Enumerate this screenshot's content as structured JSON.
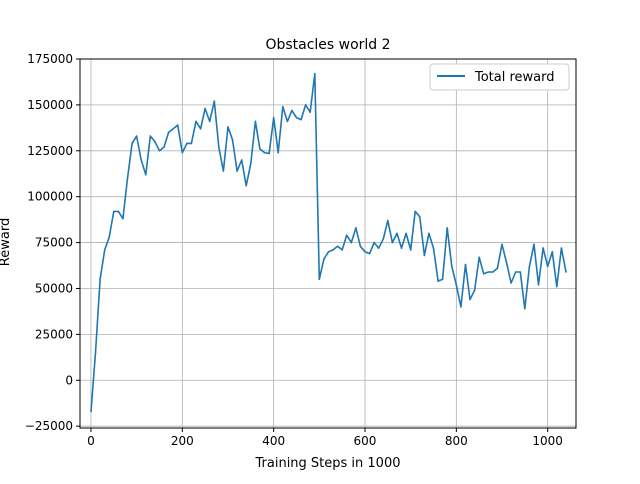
{
  "chart_data": {
    "type": "line",
    "title": "Obstacles world 2",
    "xlabel": "Training Steps in 1000",
    "ylabel": "Reward",
    "xlim": [
      -24,
      1062
    ],
    "ylim": [
      -26000,
      175000
    ],
    "xticks": [
      0,
      200,
      400,
      600,
      800,
      1000
    ],
    "yticks": [
      -25000,
      0,
      25000,
      50000,
      75000,
      100000,
      125000,
      150000,
      175000
    ],
    "grid": true,
    "legend_position": "top-right",
    "series": [
      {
        "name": "Total reward",
        "color": "#1f77b4",
        "x": [
          0,
          10,
          20,
          30,
          40,
          50,
          60,
          70,
          80,
          90,
          100,
          110,
          120,
          130,
          140,
          150,
          160,
          170,
          180,
          190,
          200,
          210,
          220,
          230,
          240,
          250,
          260,
          270,
          280,
          290,
          300,
          310,
          320,
          330,
          340,
          350,
          360,
          370,
          380,
          390,
          400,
          410,
          420,
          430,
          440,
          450,
          460,
          470,
          480,
          490,
          500,
          510,
          520,
          530,
          540,
          550,
          560,
          570,
          580,
          590,
          600,
          610,
          620,
          630,
          640,
          650,
          660,
          670,
          680,
          690,
          700,
          710,
          720,
          730,
          740,
          750,
          760,
          770,
          780,
          790,
          800,
          810,
          820,
          830,
          840,
          850,
          860,
          870,
          880,
          890,
          900,
          910,
          920,
          930,
          940,
          950,
          960,
          970,
          980,
          990,
          1000,
          1010,
          1020,
          1030,
          1040
        ],
        "y": [
          -17000,
          15000,
          55000,
          71000,
          78000,
          92000,
          92000,
          88000,
          110000,
          129000,
          133000,
          120000,
          112000,
          133000,
          130000,
          125000,
          127000,
          135000,
          137000,
          139000,
          124000,
          129000,
          129000,
          141000,
          137000,
          148000,
          141000,
          152000,
          127000,
          114000,
          138000,
          131000,
          114000,
          120000,
          106000,
          118000,
          141000,
          126000,
          124000,
          123500,
          143000,
          124000,
          149000,
          141000,
          147000,
          143000,
          142000,
          150000,
          146000,
          167000,
          55000,
          66000,
          70000,
          71000,
          73000,
          71000,
          79000,
          75000,
          83000,
          73000,
          70000,
          69000,
          75000,
          72000,
          77000,
          87000,
          75000,
          80000,
          72000,
          80000,
          71000,
          92000,
          89000,
          68000,
          80000,
          72000,
          54000,
          55000,
          83000,
          62000,
          52000,
          40000,
          63000,
          44000,
          49000,
          67000,
          58000,
          59000,
          59000,
          61000,
          74000,
          64000,
          53000,
          59000,
          59000,
          39000,
          62000,
          74000,
          52000,
          72000,
          62000,
          70000,
          51000,
          72000,
          59000
        ]
      }
    ]
  }
}
